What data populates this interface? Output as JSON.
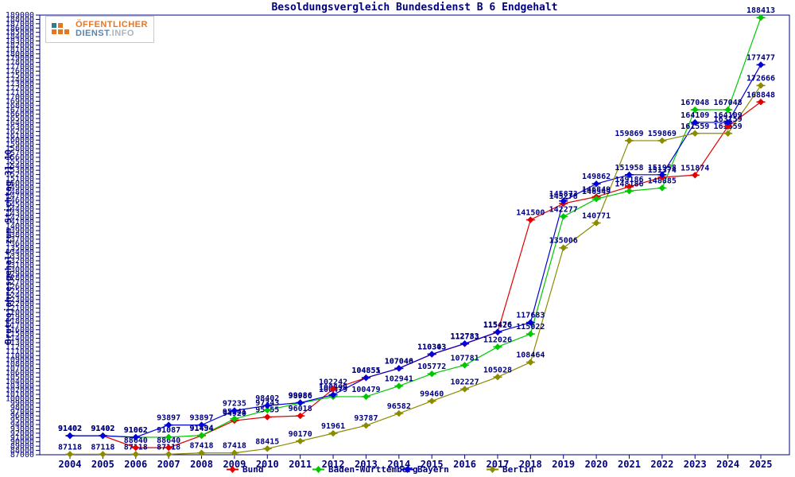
{
  "page": {
    "title": "Besoldungsvergleich Bundesdienst B 6 Endgehalt"
  },
  "logo": {
    "line1": "ÖFFENTLICHER",
    "line2_strong": "DIENST",
    "line2_rest": ".INFO"
  },
  "y_axis": {
    "label": "Bruttojahresgehalt zum Stichtag 31.10.",
    "min": 87000,
    "max": 189000,
    "step": 1000
  },
  "colors": {
    "axis": "#000080",
    "text": "#000080",
    "bund": "#e00000",
    "baden_wuerttemberg": "#00c800",
    "bayern": "#0000d8",
    "berlin": "#8b8b00"
  },
  "chart_data": {
    "type": "line",
    "title": "Besoldungsvergleich Bundesdienst B 6 Endgehalt",
    "xlabel": "",
    "ylabel": "Bruttojahresgehalt zum Stichtag 31.10.",
    "ylim": [
      87000,
      189000
    ],
    "grid": false,
    "legend_position": "bottom",
    "point_labels": true,
    "x": [
      "2004",
      "2005",
      "2006",
      "2007",
      "2008",
      "2009",
      "2010",
      "2011",
      "2012",
      "2013",
      "2014",
      "2015",
      "2016",
      "2017",
      "2018",
      "2019",
      "2020",
      "2021",
      "2022",
      "2023",
      "2024",
      "2025"
    ],
    "series": [
      {
        "name": "Bund",
        "color": "#e00000",
        "values": [
          91402,
          91402,
          88640,
          88640,
          91434,
          94920,
          95755,
          96018,
          102242,
          104851,
          107040,
          110303,
          112733,
          115426,
          141500,
          145278,
          146849,
          149186,
          151374,
          151874,
          163159,
          168848
        ]
      },
      {
        "name": "Baden-Württemberg",
        "color": "#00c800",
        "values": [
          91402,
          91402,
          91062,
          91087,
          91494,
          95341,
          97343,
          98986,
          100479,
          100479,
          102941,
          105772,
          107781,
          112026,
          115022,
          142277,
          146349,
          148186,
          148885,
          167048,
          167048,
          188413
        ]
      },
      {
        "name": "Bayern",
        "color": "#0000d8",
        "values": [
          91402,
          91402,
          91062,
          93897,
          93897,
          97235,
          98402,
          99086,
          100899,
          104855,
          107046,
          110343,
          112783,
          115476,
          117683,
          145873,
          149862,
          151958,
          151958,
          164109,
          164109,
          177477
        ]
      },
      {
        "name": "Berlin",
        "color": "#8b8b00",
        "values": [
          87118,
          87118,
          87118,
          87118,
          87418,
          87418,
          88415,
          90170,
          91961,
          93787,
          96582,
          99460,
          102227,
          105028,
          108464,
          135006,
          140771,
          159869,
          159869,
          161559,
          161559,
          172666
        ]
      }
    ]
  }
}
